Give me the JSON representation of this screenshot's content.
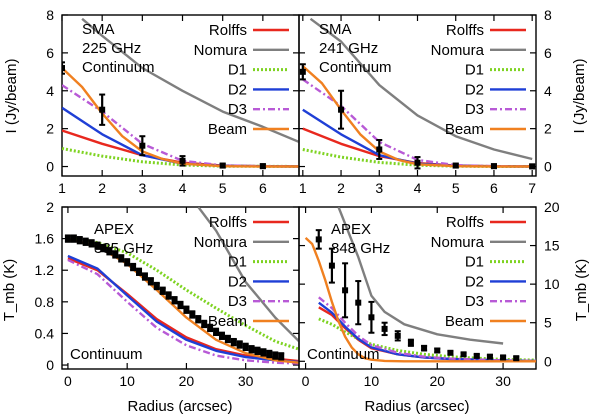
{
  "chart_data": [
    {
      "type": "line",
      "panel": "top-left",
      "annotation": [
        "SMA",
        "225 GHz",
        "Continuum"
      ],
      "xlabel": "",
      "ylabel": "I (Jy/beam)",
      "xlim": [
        1,
        6.9
      ],
      "ylim": [
        -0.5,
        8
      ],
      "xticks": [
        1,
        2,
        3,
        4,
        5,
        6
      ],
      "yticks": [
        0,
        2,
        4,
        6,
        8
      ],
      "legend_position": "top-right",
      "series": [
        {
          "name": "Rolffs",
          "color": "#e8281e",
          "style": "solid",
          "x": [
            1,
            2,
            3,
            4,
            5,
            6,
            6.9
          ],
          "y": [
            1.9,
            1.2,
            0.6,
            0.2,
            0.05,
            0.02,
            0.01
          ]
        },
        {
          "name": "Nomura",
          "color": "#7f7f7f",
          "style": "solid",
          "x": [
            1.5,
            2,
            3,
            4,
            5,
            6,
            6.9
          ],
          "y": [
            7.8,
            6.9,
            5.2,
            4.0,
            2.9,
            2.1,
            1.3
          ]
        },
        {
          "name": "D1",
          "color": "#7ed321",
          "style": "dotted",
          "x": [
            1,
            2,
            3,
            4,
            5,
            6,
            6.9
          ],
          "y": [
            0.95,
            0.55,
            0.25,
            0.08,
            0.02,
            0.01,
            0.0
          ]
        },
        {
          "name": "D2",
          "color": "#1f3fd6",
          "style": "solid",
          "x": [
            1,
            2,
            3,
            4,
            5,
            6,
            6.9
          ],
          "y": [
            3.1,
            1.7,
            0.6,
            0.15,
            0.04,
            0.01,
            0.0
          ]
        },
        {
          "name": "D3",
          "color": "#b85ad6",
          "style": "dashdot",
          "x": [
            1,
            2,
            3,
            4,
            5,
            6,
            6.9
          ],
          "y": [
            4.3,
            2.9,
            1.2,
            0.3,
            0.06,
            0.02,
            0.0
          ]
        },
        {
          "name": "Beam",
          "color": "#f08020",
          "style": "solid",
          "x": [
            1,
            1.5,
            2,
            2.5,
            3,
            3.5,
            4,
            5,
            6,
            6.9
          ],
          "y": [
            5.2,
            4.2,
            2.8,
            1.6,
            0.8,
            0.4,
            0.15,
            0.02,
            0.0,
            0.0
          ]
        }
      ],
      "data_points": {
        "x": [
          1,
          2,
          3,
          4,
          5,
          6
        ],
        "y": [
          5.2,
          3.0,
          1.1,
          0.3,
          0.05,
          0.02
        ],
        "err": [
          0.3,
          0.8,
          0.5,
          0.25,
          0.1,
          0.1
        ]
      }
    },
    {
      "type": "line",
      "panel": "top-right",
      "annotation": [
        "SMA",
        "241 GHz",
        "Continuum"
      ],
      "xlabel": "",
      "ylabel": "I (Jy/beam)",
      "xlim": [
        0.9,
        7.1
      ],
      "ylim": [
        -0.5,
        8
      ],
      "xticks": [
        1,
        2,
        3,
        4,
        5,
        6,
        7
      ],
      "yticks": [
        0,
        2,
        4,
        6,
        8
      ],
      "legend_position": "top-right",
      "series": [
        {
          "name": "Rolffs",
          "color": "#e8281e",
          "style": "solid",
          "x": [
            1,
            2,
            3,
            4,
            5,
            6,
            7
          ],
          "y": [
            2.0,
            1.2,
            0.55,
            0.18,
            0.05,
            0.02,
            0.01
          ]
        },
        {
          "name": "Nomura",
          "color": "#7f7f7f",
          "style": "solid",
          "x": [
            1.2,
            2,
            3,
            4,
            5,
            6,
            7
          ],
          "y": [
            7.8,
            6.6,
            4.3,
            2.7,
            1.6,
            0.9,
            0.4
          ]
        },
        {
          "name": "D1",
          "color": "#7ed321",
          "style": "dotted",
          "x": [
            1,
            2,
            3,
            4,
            5,
            6,
            7
          ],
          "y": [
            0.9,
            0.5,
            0.22,
            0.07,
            0.02,
            0.0,
            0.0
          ]
        },
        {
          "name": "D2",
          "color": "#1f3fd6",
          "style": "solid",
          "x": [
            1,
            2,
            3,
            4,
            5,
            6,
            7
          ],
          "y": [
            3.0,
            1.7,
            0.6,
            0.15,
            0.04,
            0.01,
            0.0
          ]
        },
        {
          "name": "D3",
          "color": "#b85ad6",
          "style": "dashdot",
          "x": [
            1,
            2,
            3,
            4,
            5,
            6,
            7
          ],
          "y": [
            4.6,
            3.2,
            1.3,
            0.35,
            0.07,
            0.02,
            0.0
          ]
        },
        {
          "name": "Beam",
          "color": "#f08020",
          "style": "solid",
          "x": [
            1,
            1.5,
            2,
            2.5,
            3,
            3.5,
            4,
            5,
            6,
            7
          ],
          "y": [
            5.3,
            4.4,
            3.0,
            1.7,
            0.8,
            0.35,
            0.12,
            0.02,
            0.0,
            0.0
          ]
        }
      ],
      "data_points": {
        "x": [
          1,
          2,
          3,
          4,
          5,
          6,
          7
        ],
        "y": [
          5.0,
          3.0,
          0.9,
          0.2,
          0.05,
          0.02,
          0.01
        ],
        "err": [
          0.4,
          1.0,
          0.5,
          0.3,
          0.1,
          0.1,
          0.1
        ]
      }
    },
    {
      "type": "line",
      "panel": "bottom-left",
      "annotation": [
        "APEX",
        "335 GHz",
        "Continuum"
      ],
      "xlabel": "Radius (arcsec)",
      "ylabel": "T_mb (K)",
      "xlim": [
        -1,
        39
      ],
      "ylim": [
        -0.05,
        2
      ],
      "xticks": [
        0,
        10,
        20,
        30
      ],
      "yticks": [
        0,
        0.4,
        0.8,
        1.2,
        1.6,
        2
      ],
      "legend_position": "top-right",
      "series": [
        {
          "name": "Rolffs",
          "color": "#e8281e",
          "style": "solid",
          "x": [
            0,
            5,
            10,
            15,
            20,
            25,
            30,
            35,
            39
          ],
          "y": [
            1.35,
            1.2,
            0.9,
            0.58,
            0.35,
            0.2,
            0.12,
            0.08,
            0.05
          ]
        },
        {
          "name": "Nomura",
          "color": "#7f7f7f",
          "style": "solid",
          "x": [
            22,
            25,
            30,
            35,
            39
          ],
          "y": [
            2.0,
            1.7,
            1.05,
            0.6,
            0.3
          ]
        },
        {
          "name": "D1",
          "color": "#7ed321",
          "style": "dotted",
          "x": [
            0,
            5,
            10,
            15,
            20,
            25,
            30,
            35,
            39
          ],
          "y": [
            1.62,
            1.55,
            1.42,
            1.2,
            0.95,
            0.72,
            0.5,
            0.3,
            0.2
          ]
        },
        {
          "name": "D2",
          "color": "#1f3fd6",
          "style": "solid",
          "x": [
            0,
            5,
            10,
            15,
            20,
            25,
            30,
            35,
            39
          ],
          "y": [
            1.38,
            1.22,
            0.88,
            0.55,
            0.32,
            0.18,
            0.1,
            0.06,
            0.04
          ]
        },
        {
          "name": "D3",
          "color": "#b85ad6",
          "style": "dashdot",
          "x": [
            0,
            5,
            10,
            15,
            20,
            25,
            30,
            35,
            39
          ],
          "y": [
            1.33,
            1.15,
            0.8,
            0.47,
            0.25,
            0.12,
            0.06,
            0.03,
            0.02
          ]
        },
        {
          "name": "Beam",
          "color": "#f08020",
          "style": "solid",
          "x": [
            0,
            5,
            10,
            15,
            20,
            25,
            30,
            35,
            39
          ],
          "y": [
            1.6,
            1.5,
            1.28,
            0.95,
            0.6,
            0.32,
            0.15,
            0.06,
            0.03
          ]
        }
      ],
      "data_points": {
        "x": [
          0,
          1,
          2,
          3,
          4,
          5,
          6,
          7,
          8,
          9,
          10,
          11,
          12,
          13,
          14,
          15,
          16,
          17,
          18,
          19,
          20,
          21,
          22,
          23,
          24,
          25,
          26,
          27,
          28,
          29,
          30,
          31,
          32,
          33,
          34,
          35,
          36
        ],
        "y": [
          1.6,
          1.6,
          1.58,
          1.56,
          1.54,
          1.51,
          1.48,
          1.44,
          1.4,
          1.35,
          1.3,
          1.24,
          1.18,
          1.12,
          1.06,
          1.0,
          0.94,
          0.88,
          0.82,
          0.76,
          0.7,
          0.64,
          0.58,
          0.52,
          0.47,
          0.42,
          0.37,
          0.33,
          0.29,
          0.26,
          0.23,
          0.2,
          0.18,
          0.16,
          0.14,
          0.12,
          0.11
        ],
        "err": [
          0.04,
          0.04,
          0.04,
          0.04,
          0.04,
          0.04,
          0.04,
          0.04,
          0.04,
          0.04,
          0.04,
          0.04,
          0.04,
          0.04,
          0.04,
          0.04,
          0.04,
          0.04,
          0.04,
          0.04,
          0.04,
          0.04,
          0.04,
          0.04,
          0.04,
          0.04,
          0.04,
          0.04,
          0.04,
          0.04,
          0.04,
          0.04,
          0.04,
          0.04,
          0.04,
          0.04,
          0.04
        ]
      }
    },
    {
      "type": "line",
      "panel": "bottom-right",
      "annotation": [
        "APEX",
        "848 GHz",
        "Continuum"
      ],
      "xlabel": "Radius (arcsec)",
      "ylabel": "T_mb (K)",
      "xlim": [
        -1,
        35
      ],
      "ylim": [
        -1,
        20
      ],
      "xticks": [
        0,
        10,
        20,
        30
      ],
      "yticks": [
        0,
        5,
        10,
        15,
        20
      ],
      "legend_position": "top-right",
      "series": [
        {
          "name": "Rolffs",
          "color": "#e8281e",
          "style": "solid",
          "x": [
            2,
            4,
            6,
            8,
            10,
            14,
            18,
            22,
            26,
            30,
            35
          ],
          "y": [
            7.0,
            6.0,
            4.3,
            2.8,
            1.7,
            0.9,
            0.5,
            0.3,
            0.2,
            0.1,
            0.05
          ]
        },
        {
          "name": "Nomura",
          "color": "#7f7f7f",
          "style": "solid",
          "x": [
            5,
            8,
            10,
            12,
            15,
            20,
            25,
            30
          ],
          "y": [
            20,
            13.5,
            8.5,
            6.4,
            4.8,
            3.5,
            2.8,
            2.3
          ]
        },
        {
          "name": "D1",
          "color": "#7ed321",
          "style": "dotted",
          "x": [
            2,
            4,
            6,
            8,
            10,
            14,
            18,
            22,
            26,
            30,
            35
          ],
          "y": [
            5.5,
            4.8,
            3.8,
            2.9,
            2.2,
            1.4,
            0.9,
            0.6,
            0.4,
            0.25,
            0.15
          ]
        },
        {
          "name": "D2",
          "color": "#1f3fd6",
          "style": "solid",
          "x": [
            2,
            4,
            6,
            8,
            10,
            14,
            18,
            22,
            26,
            30,
            35
          ],
          "y": [
            7.6,
            6.3,
            4.5,
            2.9,
            1.8,
            0.9,
            0.5,
            0.3,
            0.2,
            0.1,
            0.05
          ]
        },
        {
          "name": "D3",
          "color": "#b85ad6",
          "style": "dashdot",
          "x": [
            2,
            4,
            6,
            8,
            10,
            14,
            18,
            22,
            26,
            30,
            35
          ],
          "y": [
            8.3,
            6.9,
            5.0,
            3.3,
            2.1,
            1.1,
            0.6,
            0.35,
            0.2,
            0.1,
            0.05
          ]
        },
        {
          "name": "Beam",
          "color": "#f08020",
          "style": "solid",
          "x": [
            0,
            1,
            2,
            3,
            4,
            5,
            6,
            7,
            8,
            9,
            10,
            12,
            15,
            20,
            25,
            30,
            35
          ],
          "y": [
            16.0,
            15.2,
            13.0,
            10.5,
            7.7,
            5.2,
            3.2,
            1.8,
            0.9,
            0.4,
            0.2,
            0.05,
            0.0,
            0.0,
            0.0,
            0.0,
            0.0
          ]
        }
      ],
      "data_points": {
        "x": [
          2,
          4,
          6,
          8,
          10,
          12,
          14,
          16,
          18,
          20,
          22,
          24,
          26,
          28,
          30,
          32
        ],
        "y": [
          15.8,
          12.4,
          9.2,
          7.6,
          5.7,
          4.2,
          3.3,
          2.4,
          1.7,
          1.4,
          1.1,
          0.9,
          0.7,
          0.6,
          0.5,
          0.4
        ],
        "err": [
          1.2,
          2.2,
          3.5,
          2.8,
          2.0,
          0.8,
          0.6,
          0.4,
          0.3,
          0.25,
          0.2,
          0.2,
          0.2,
          0.2,
          0.2,
          0.2
        ]
      }
    }
  ],
  "shared_axis_labels": {
    "left_top": "I (Jy/beam)",
    "right_top": "I (Jy/beam)",
    "left_bottom": "T_mb (K)",
    "right_bottom": "T_mb (K)",
    "bottom_x": "Radius (arcsec)"
  },
  "legend_labels": [
    "Rolffs",
    "Nomura",
    "D1",
    "D2",
    "D3",
    "Beam"
  ]
}
